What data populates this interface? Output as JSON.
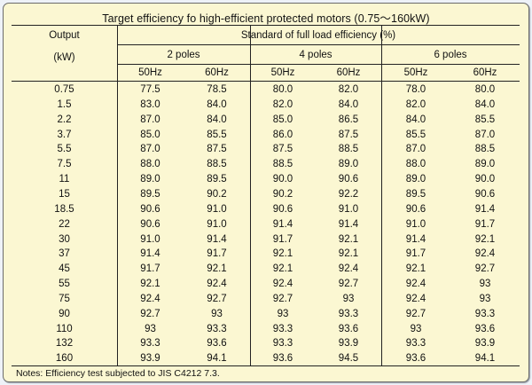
{
  "title": "Target efficiency fo high-efficient protected motors (0.75～160kW)",
  "header": {
    "output_label": "Output",
    "output_unit": "(kW)",
    "standard_label": "Standard of full load efficiency (%)",
    "pole_groups": [
      "2 poles",
      "4 poles",
      "6 poles"
    ],
    "freqs": [
      "50Hz",
      "60Hz",
      "50Hz",
      "60Hz",
      "50Hz",
      "60Hz"
    ]
  },
  "rows": [
    [
      "0.75",
      "77.5",
      "78.5",
      "80.0",
      "82.0",
      "78.0",
      "80.0"
    ],
    [
      "1.5",
      "83.0",
      "84.0",
      "82.0",
      "84.0",
      "82.0",
      "84.0"
    ],
    [
      "2.2",
      "87.0",
      "84.0",
      "85.0",
      "86.5",
      "84.0",
      "85.5"
    ],
    [
      "3.7",
      "85.0",
      "85.5",
      "86.0",
      "87.5",
      "85.5",
      "87.0"
    ],
    [
      "5.5",
      "87.0",
      "87.5",
      "87.5",
      "88.5",
      "87.0",
      "88.5"
    ],
    [
      "7.5",
      "88.0",
      "88.5",
      "88.5",
      "89.0",
      "88.0",
      "89.0"
    ],
    [
      "11",
      "89.0",
      "89.5",
      "90.0",
      "90.6",
      "89.0",
      "90.0"
    ],
    [
      "15",
      "89.5",
      "90.2",
      "90.2",
      "92.2",
      "89.5",
      "90.6"
    ],
    [
      "18.5",
      "90.6",
      "91.0",
      "90.6",
      "91.0",
      "90.6",
      "91.4"
    ],
    [
      "22",
      "90.6",
      "91.0",
      "91.4",
      "91.4",
      "91.0",
      "91.7"
    ],
    [
      "30",
      "91.0",
      "91.4",
      "91.7",
      "92.1",
      "91.4",
      "92.1"
    ],
    [
      "37",
      "91.4",
      "91.7",
      "92.1",
      "92.1",
      "91.7",
      "92.4"
    ],
    [
      "45",
      "91.7",
      "92.1",
      "92.1",
      "92.4",
      "92.1",
      "92.7"
    ],
    [
      "55",
      "92.1",
      "92.4",
      "92.4",
      "92.7",
      "92.4",
      "93"
    ],
    [
      "75",
      "92.4",
      "92.7",
      "92.7",
      "93",
      "92.4",
      "93"
    ],
    [
      "90",
      "92.7",
      "93",
      "93",
      "93.3",
      "92.7",
      "93.3"
    ],
    [
      "110",
      "93",
      "93.3",
      "93.3",
      "93.6",
      "93",
      "93.6"
    ],
    [
      "132",
      "93.3",
      "93.6",
      "93.3",
      "93.9",
      "93.3",
      "93.9"
    ],
    [
      "160",
      "93.9",
      "94.1",
      "93.6",
      "94.5",
      "93.6",
      "94.1"
    ]
  ],
  "notes": "Notes: Efficiency test subjected to JIS C4212 7.3."
}
